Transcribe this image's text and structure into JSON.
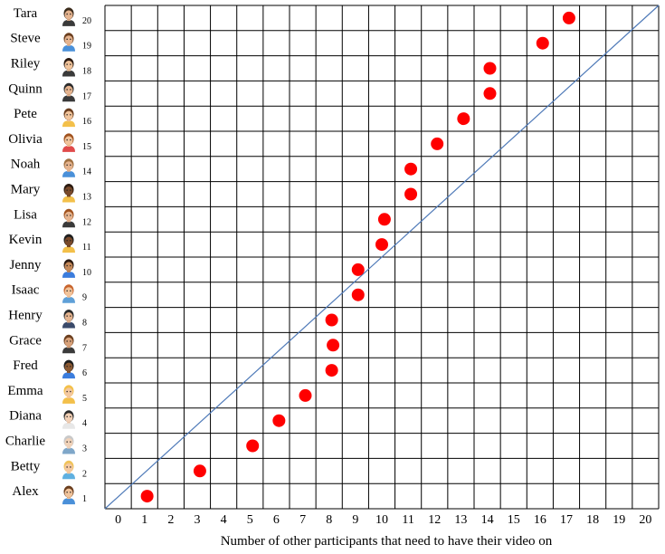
{
  "chart_data": {
    "type": "scatter",
    "xlabel": "Number of other participants that need to have their video on",
    "ylabel": "",
    "xlim": [
      0,
      21
    ],
    "ylim": [
      0,
      20
    ],
    "x_ticks": [
      "0",
      "1",
      "2",
      "3",
      "4",
      "5",
      "6",
      "7",
      "8",
      "9",
      "10",
      "11",
      "12",
      "13",
      "14",
      "15",
      "16",
      "17",
      "18",
      "19",
      "20"
    ],
    "grid": true,
    "reference_line": {
      "from": [
        0,
        0
      ],
      "to": [
        21,
        20
      ],
      "color": "#4f7ab8"
    },
    "marker_color": "#ff0000",
    "participants": [
      {
        "name": "Alex",
        "number": "1",
        "icon": "avatar-icon-alex",
        "skin": "#f2c49b",
        "hair": "#6b3e1e",
        "shirt": "#4a90d9"
      },
      {
        "name": "Betty",
        "number": "2",
        "icon": "avatar-icon-betty",
        "skin": "#f4c8a0",
        "hair": "#f0c35a",
        "shirt": "#5fb0e0"
      },
      {
        "name": "Charlie",
        "number": "3",
        "icon": "avatar-icon-charlie",
        "skin": "#f1d2b8",
        "hair": "#c9c9c9",
        "shirt": "#7fa7c9"
      },
      {
        "name": "Diana",
        "number": "4",
        "icon": "avatar-icon-diana",
        "skin": "#f3d0b5",
        "hair": "#2b2b2b",
        "shirt": "#e7e7e7"
      },
      {
        "name": "Emma",
        "number": "5",
        "icon": "avatar-icon-emma",
        "skin": "#f4c8a0",
        "hair": "#f3c04a",
        "shirt": "#f3c04a"
      },
      {
        "name": "Fred",
        "number": "6",
        "icon": "avatar-icon-fred",
        "skin": "#8d5a33",
        "hair": "#1e1e1e",
        "shirt": "#3b7ddd"
      },
      {
        "name": "Grace",
        "number": "7",
        "icon": "avatar-icon-grace",
        "skin": "#d9a27a",
        "hair": "#6b3e1e",
        "shirt": "#3a3a3a"
      },
      {
        "name": "Henry",
        "number": "8",
        "icon": "avatar-icon-henry",
        "skin": "#e6b48f",
        "hair": "#2b2b2b",
        "shirt": "#3a4a6a"
      },
      {
        "name": "Isaac",
        "number": "9",
        "icon": "avatar-icon-isaac",
        "skin": "#f2c49b",
        "hair": "#c8642c",
        "shirt": "#5fa0d8"
      },
      {
        "name": "Jenny",
        "number": "10",
        "icon": "avatar-icon-jenny",
        "skin": "#c68a5a",
        "hair": "#2b1a10",
        "shirt": "#3b7ddd"
      },
      {
        "name": "Kevin",
        "number": "11",
        "icon": "avatar-icon-kevin",
        "skin": "#7a4a2a",
        "hair": "#1e1e1e",
        "shirt": "#f3c04a"
      },
      {
        "name": "Lisa",
        "number": "12",
        "icon": "avatar-icon-lisa",
        "skin": "#e6b48f",
        "hair": "#a0521e",
        "shirt": "#3a3a3a"
      },
      {
        "name": "Mary",
        "number": "13",
        "icon": "avatar-icon-mary",
        "skin": "#7a4a2a",
        "hair": "#2b1a10",
        "shirt": "#f3c04a"
      },
      {
        "name": "Noah",
        "number": "14",
        "icon": "avatar-icon-noah",
        "skin": "#e6b48f",
        "hair": "#a07040",
        "shirt": "#4a90d9"
      },
      {
        "name": "Olivia",
        "number": "15",
        "icon": "avatar-icon-olivia",
        "skin": "#f2c49b",
        "hair": "#a0521e",
        "shirt": "#e04a4a"
      },
      {
        "name": "Pete",
        "number": "16",
        "icon": "avatar-icon-pete",
        "skin": "#f2c49b",
        "hair": "#6b3e1e",
        "shirt": "#f3c04a"
      },
      {
        "name": "Quinn",
        "number": "17",
        "icon": "avatar-icon-quinn",
        "skin": "#e6b48f",
        "hair": "#2b2b2b",
        "shirt": "#3a3a3a"
      },
      {
        "name": "Riley",
        "number": "18",
        "icon": "avatar-icon-riley",
        "skin": "#f2c49b",
        "hair": "#2b1a10",
        "shirt": "#3a3a3a"
      },
      {
        "name": "Steve",
        "number": "19",
        "icon": "avatar-icon-steve",
        "skin": "#e6b48f",
        "hair": "#6b3e1e",
        "shirt": "#4a90d9"
      },
      {
        "name": "Tara",
        "number": "20",
        "icon": "avatar-icon-tara",
        "skin": "#e6b48f",
        "hair": "#3a2a1a",
        "shirt": "#3a3a3a"
      }
    ],
    "points": [
      {
        "participant": "Alex",
        "x": 1.1
      },
      {
        "participant": "Betty",
        "x": 3.1
      },
      {
        "participant": "Charlie",
        "x": 5.1
      },
      {
        "participant": "Diana",
        "x": 6.1
      },
      {
        "participant": "Emma",
        "x": 7.1
      },
      {
        "participant": "Fred",
        "x": 8.1
      },
      {
        "participant": "Grace",
        "x": 8.15
      },
      {
        "participant": "Henry",
        "x": 8.1
      },
      {
        "participant": "Isaac",
        "x": 9.1
      },
      {
        "participant": "Jenny",
        "x": 9.1
      },
      {
        "participant": "Kevin",
        "x": 10.0
      },
      {
        "participant": "Lisa",
        "x": 10.1
      },
      {
        "participant": "Mary",
        "x": 11.1
      },
      {
        "participant": "Noah",
        "x": 11.1
      },
      {
        "participant": "Olivia",
        "x": 12.1
      },
      {
        "participant": "Pete",
        "x": 13.1
      },
      {
        "participant": "Quinn",
        "x": 14.1
      },
      {
        "participant": "Riley",
        "x": 14.1
      },
      {
        "participant": "Steve",
        "x": 16.1
      },
      {
        "participant": "Tara",
        "x": 17.1
      }
    ]
  }
}
